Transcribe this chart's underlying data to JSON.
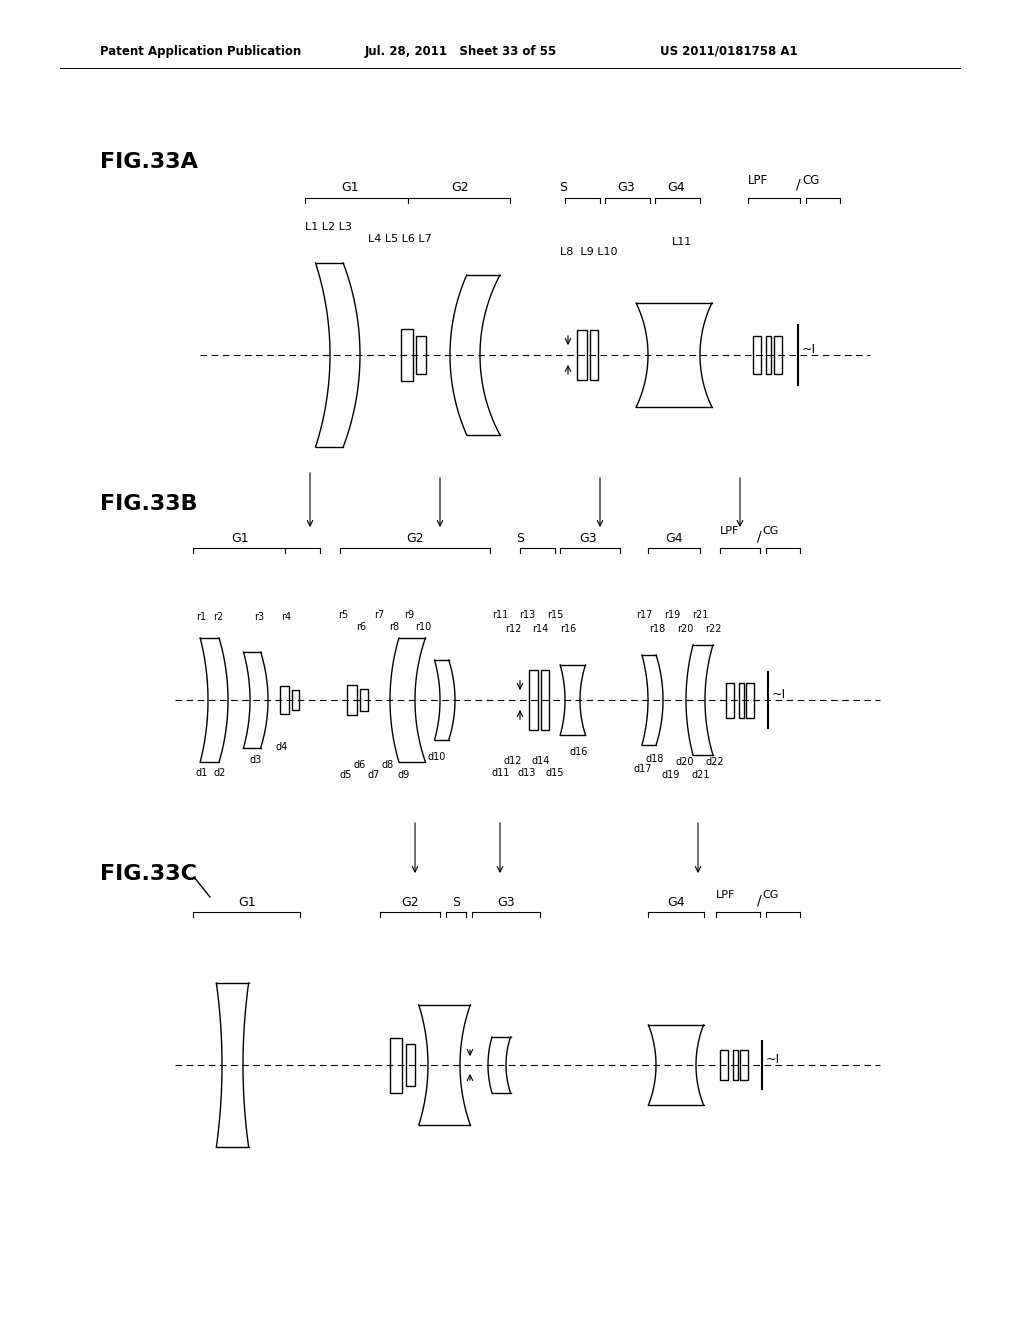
{
  "header_left": "Patent Application Publication",
  "header_mid": "Jul. 28, 2011   Sheet 33 of 55",
  "header_right": "US 2011/0181758 A1",
  "background": "#ffffff",
  "line_color": "#000000"
}
